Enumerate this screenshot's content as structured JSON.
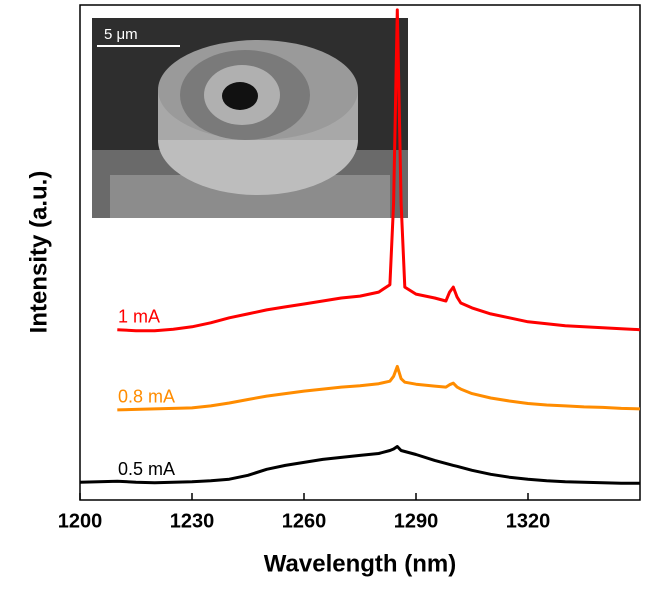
{
  "chart_data": {
    "type": "line",
    "xlabel": "Wavelength (nm)",
    "ylabel": "Intensity (a.u.)",
    "inset_scale_label": "5 μm",
    "x": [
      1200,
      1205,
      1210,
      1215,
      1220,
      1225,
      1230,
      1235,
      1240,
      1245,
      1250,
      1255,
      1260,
      1265,
      1270,
      1275,
      1280,
      1283,
      1284,
      1285,
      1286,
      1287,
      1290,
      1295,
      1298,
      1299,
      1300,
      1301,
      1302,
      1305,
      1310,
      1315,
      1320,
      1325,
      1330,
      1335,
      1340,
      1345,
      1350
    ],
    "xlim": [
      1200,
      1350
    ],
    "xticks": [
      1200,
      1230,
      1260,
      1290,
      1320
    ],
    "ylim": [
      0,
      100
    ],
    "series": [
      {
        "name": "1 mA",
        "color": "#ff0000",
        "values": [
          null,
          null,
          34.4,
          34.2,
          34.2,
          34.5,
          35,
          35.8,
          36.8,
          37.6,
          38.4,
          39,
          39.6,
          40.2,
          40.8,
          41.2,
          42,
          43.5,
          60,
          99,
          60,
          43,
          41.6,
          40.8,
          40.2,
          42,
          43,
          41,
          39.8,
          38.8,
          37.6,
          36.8,
          36,
          35.6,
          35.2,
          35,
          34.8,
          34.6,
          34.4
        ]
      },
      {
        "name": "0.8 mA",
        "color": "#ff8c00",
        "values": [
          null,
          null,
          18.2,
          18.3,
          18.4,
          18.5,
          18.6,
          19,
          19.6,
          20.3,
          21,
          21.5,
          22,
          22.4,
          22.8,
          23.1,
          23.5,
          24,
          25,
          27,
          24.5,
          23.8,
          23.4,
          23,
          22.8,
          23.3,
          23.6,
          22.8,
          22.4,
          21.5,
          20.6,
          20,
          19.5,
          19.2,
          19,
          18.8,
          18.7,
          18.5,
          18.4
        ]
      },
      {
        "name": "0.5 mA",
        "color": "#000000",
        "values": [
          3.6,
          3.7,
          3.8,
          3.6,
          3.5,
          3.6,
          3.7,
          3.9,
          4.2,
          5,
          6.2,
          7,
          7.6,
          8.2,
          8.6,
          9,
          9.4,
          10,
          10.3,
          10.8,
          10,
          9.8,
          9.2,
          8,
          7.4,
          7.2,
          7,
          6.8,
          6.6,
          6,
          5.2,
          4.6,
          4.2,
          3.9,
          3.7,
          3.6,
          3.5,
          3.4,
          3.4
        ]
      }
    ]
  }
}
